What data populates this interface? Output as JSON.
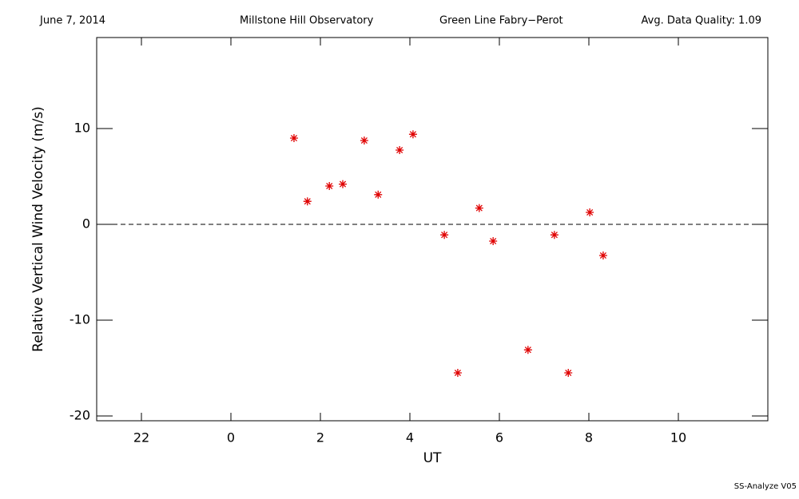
{
  "chart_data": {
    "type": "scatter",
    "header": [
      "June 7, 2014",
      "Millstone Hill Observatory",
      "Green Line Fabry−Perot",
      "Avg. Data Quality: 1.09"
    ],
    "footer": "SS-Analyze V05",
    "x_label": "UT",
    "y_label": "Relative Vertical Wind Velocity (m/s)",
    "xlim": [
      -3,
      12
    ],
    "xticks": [
      {
        "value": -2,
        "label": "22"
      },
      0,
      2,
      4,
      6,
      8,
      10
    ],
    "ylim": [
      -20.5,
      19.5
    ],
    "yticks": [
      -20,
      -10,
      0,
      10
    ],
    "reference_line": 0,
    "color": "#e00000",
    "x": [
      1.41,
      1.71,
      2.2,
      2.5,
      2.98,
      3.29,
      3.77,
      4.07,
      4.77,
      5.07,
      5.55,
      5.86,
      6.64,
      7.23,
      7.54,
      8.02,
      8.32
    ],
    "values": [
      9.0,
      2.4,
      4.0,
      4.2,
      8.75,
      3.1,
      7.75,
      9.4,
      -1.1,
      -15.5,
      1.7,
      -1.75,
      -13.1,
      -1.1,
      -15.5,
      1.25,
      -3.25
    ]
  }
}
